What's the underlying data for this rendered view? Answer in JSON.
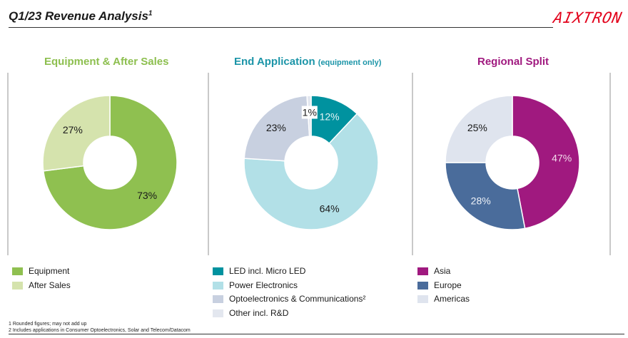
{
  "header": {
    "title": "Q1/23 Revenue Analysis",
    "title_sup": "1",
    "logo": "AIXTRON",
    "logo_color": "#e2001a"
  },
  "panels": [
    {
      "title": "Equipment & After Sales",
      "subtitle": "",
      "color": "#8dbf4f"
    },
    {
      "title": "End Application",
      "subtitle": "(equipment only)",
      "color": "#1c95a8"
    },
    {
      "title": "Regional Split",
      "subtitle": "",
      "color": "#a0197f"
    }
  ],
  "chart_data": [
    {
      "type": "pie",
      "title": "Equipment & After Sales",
      "categories": [
        "Equipment",
        "After Sales"
      ],
      "values": [
        73,
        27
      ],
      "labels": [
        "73%",
        "27%"
      ],
      "colors": [
        "#8fc050",
        "#d5e3ad"
      ],
      "label_colors": [
        "#1a1a1a",
        "#1a1a1a"
      ],
      "legend_position": "bottom-left"
    },
    {
      "type": "pie",
      "title": "End Application (equipment only)",
      "categories": [
        "LED incl. Micro LED",
        "Power Electronics",
        "Optoelectronics & Communications²",
        "Other incl. R&D"
      ],
      "values": [
        12,
        64,
        23,
        1
      ],
      "labels": [
        "12%",
        "64%",
        "23%",
        "1%"
      ],
      "colors": [
        "#00929f",
        "#b2e0e7",
        "#c8d0e0",
        "#e3e7ef"
      ],
      "label_colors": [
        "#e6f4f6",
        "#1a1a1a",
        "#1a1a1a",
        "#1a1a1a"
      ],
      "legend_position": "bottom-left"
    },
    {
      "type": "pie",
      "title": "Regional Split",
      "categories": [
        "Asia",
        "Europe",
        "Americas"
      ],
      "values": [
        47,
        28,
        25
      ],
      "labels": [
        "47%",
        "28%",
        "25%"
      ],
      "colors": [
        "#a0197f",
        "#4a6c9b",
        "#dfe4ee"
      ],
      "label_colors": [
        "#f3dcec",
        "#eef2f8",
        "#1a1a1a"
      ],
      "legend_position": "bottom-left"
    }
  ],
  "footnotes": [
    "1 Rounded figures; may not add up",
    "2 Includes applications in Consumer Optoelectronics, Solar and Telecom/Datacom"
  ]
}
